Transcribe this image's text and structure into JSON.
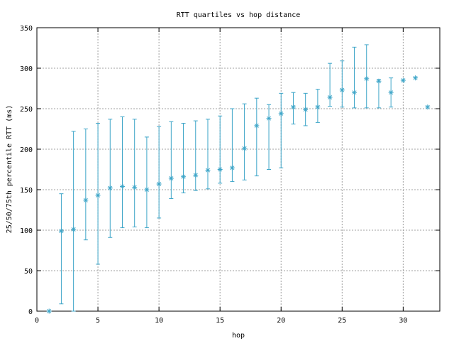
{
  "chart_data": {
    "type": "scatter",
    "title": "RTT quartiles vs hop distance",
    "xlabel": "hop",
    "ylabel": "25/50/75th percentile RTT (ms)",
    "xlim": [
      0,
      33
    ],
    "ylim": [
      0,
      350
    ],
    "xticks": [
      0,
      5,
      10,
      15,
      20,
      25,
      30
    ],
    "yticks": [
      0,
      50,
      100,
      150,
      200,
      250,
      300,
      350
    ],
    "grid": true,
    "series": [
      {
        "color": "#3da5c8",
        "marker": "asterisk",
        "errorbars": true,
        "points": [
          {
            "x": 1,
            "p25": 0,
            "median": 0,
            "p75": 0
          },
          {
            "x": 2,
            "p25": 9,
            "median": 99,
            "p75": 145
          },
          {
            "x": 3,
            "p25": 0,
            "median": 101,
            "p75": 222
          },
          {
            "x": 4,
            "p25": 88,
            "median": 137,
            "p75": 225
          },
          {
            "x": 5,
            "p25": 58,
            "median": 143,
            "p75": 232
          },
          {
            "x": 6,
            "p25": 91,
            "median": 152,
            "p75": 237
          },
          {
            "x": 7,
            "p25": 103,
            "median": 154,
            "p75": 240
          },
          {
            "x": 8,
            "p25": 104,
            "median": 153,
            "p75": 237
          },
          {
            "x": 9,
            "p25": 103,
            "median": 150,
            "p75": 215
          },
          {
            "x": 10,
            "p25": 115,
            "median": 157,
            "p75": 228
          },
          {
            "x": 11,
            "p25": 139,
            "median": 164,
            "p75": 234
          },
          {
            "x": 12,
            "p25": 146,
            "median": 166,
            "p75": 232
          },
          {
            "x": 13,
            "p25": 149,
            "median": 168,
            "p75": 235
          },
          {
            "x": 14,
            "p25": 151,
            "median": 174,
            "p75": 237
          },
          {
            "x": 15,
            "p25": 158,
            "median": 175,
            "p75": 241
          },
          {
            "x": 16,
            "p25": 160,
            "median": 177,
            "p75": 250
          },
          {
            "x": 17,
            "p25": 162,
            "median": 201,
            "p75": 256
          },
          {
            "x": 18,
            "p25": 167,
            "median": 229,
            "p75": 263
          },
          {
            "x": 19,
            "p25": 175,
            "median": 238,
            "p75": 255
          },
          {
            "x": 20,
            "p25": 177,
            "median": 244,
            "p75": 269
          },
          {
            "x": 21,
            "p25": 231,
            "median": 252,
            "p75": 270
          },
          {
            "x": 22,
            "p25": 229,
            "median": 249,
            "p75": 269
          },
          {
            "x": 23,
            "p25": 233,
            "median": 252,
            "p75": 274
          },
          {
            "x": 24,
            "p25": 253,
            "median": 264,
            "p75": 306
          },
          {
            "x": 25,
            "p25": 252,
            "median": 273,
            "p75": 309
          },
          {
            "x": 26,
            "p25": 251,
            "median": 270,
            "p75": 326
          },
          {
            "x": 27,
            "p25": 251,
            "median": 287,
            "p75": 329
          },
          {
            "x": 28,
            "p25": 251,
            "median": 284,
            "p75": 286
          },
          {
            "x": 29,
            "p25": 252,
            "median": 270,
            "p75": 288
          },
          {
            "x": 30,
            "p25": 285,
            "median": 285,
            "p75": 285
          },
          {
            "x": 31,
            "p25": 288,
            "median": 288,
            "p75": 288
          },
          {
            "x": 32,
            "p25": 252,
            "median": 252,
            "p75": 252
          }
        ]
      }
    ]
  }
}
